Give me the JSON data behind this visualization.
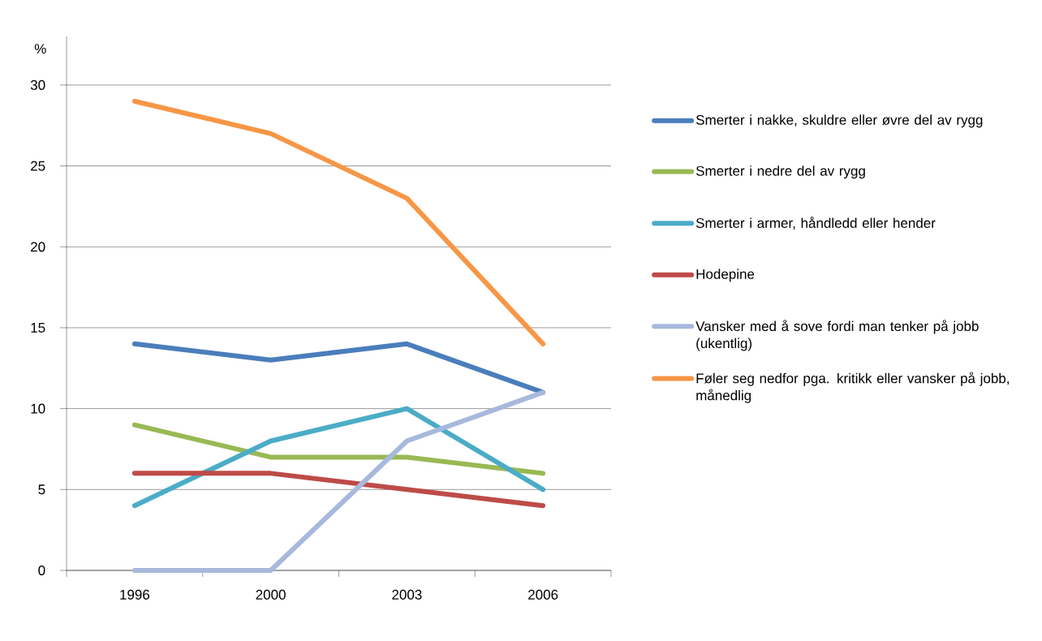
{
  "chart_data": {
    "type": "line",
    "ylabel": "%",
    "categories": [
      "1996",
      "2000",
      "2003",
      "2006"
    ],
    "series": [
      {
        "name": "Smerter i nakke, skuldre eller øvre del av rygg",
        "color": "#4a7ebb",
        "values": [
          14,
          13,
          14,
          11
        ]
      },
      {
        "name": "Smerter i nedre del av rygg",
        "color": "#98b954",
        "values": [
          9,
          7,
          7,
          6
        ]
      },
      {
        "name": "Smerter i armer, håndledd eller hender",
        "color": "#4bacc6",
        "values": [
          4,
          8,
          10,
          5
        ]
      },
      {
        "name": "Hodepine",
        "color": "#be4b48",
        "values": [
          6,
          6,
          5,
          4
        ]
      },
      {
        "name": "Vansker med å sove fordi man tenker på jobb (ukentlig)",
        "color": "#a7b9dc",
        "values": [
          0,
          0,
          8,
          11
        ]
      },
      {
        "name": "Føler seg nedfor pga. kritikk eller vansker på jobb, månedlig",
        "color": "#f79646",
        "values": [
          29,
          27,
          23,
          14
        ]
      }
    ],
    "ylim": [
      0,
      33
    ],
    "yticks": [
      0,
      5,
      10,
      15,
      20,
      25,
      30
    ],
    "grid": "y",
    "legend": "right",
    "marker": "none",
    "line_style": "solid"
  }
}
